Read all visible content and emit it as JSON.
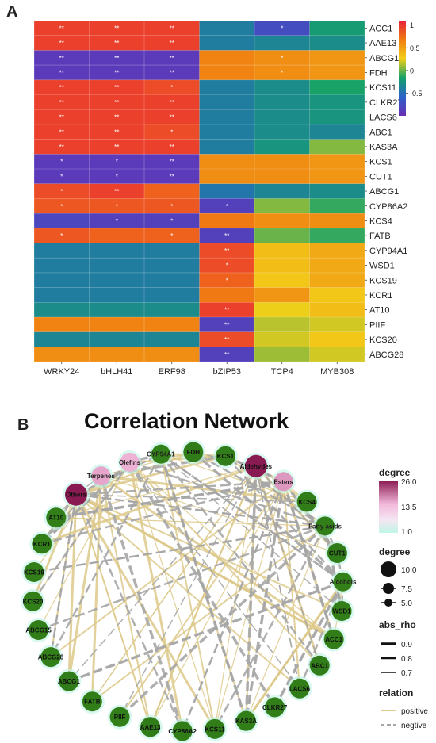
{
  "panels": {
    "a": "A",
    "b": "B"
  },
  "chart_data": [
    {
      "type": "heatmap",
      "columns": [
        "WRKY24",
        "bHLH41",
        "ERF98",
        "bZIP53",
        "TCP4",
        "MYB308"
      ],
      "rows": [
        "ACC1",
        "AAE13",
        "ABCG15",
        "FDH",
        "KCS11",
        "CLKR27",
        "LACS6",
        "ABC1",
        "KAS3A",
        "KCS1",
        "CUT1",
        "ABCG1",
        "CYP86A2",
        "KCS4",
        "FATB",
        "CYP94A1",
        "WSD1",
        "KCS19",
        "KCR1",
        "AT10",
        "PIIF",
        "KCS20",
        "ABCG28"
      ],
      "values": [
        [
          0.95,
          0.95,
          0.95,
          -0.4,
          -0.75,
          -0.2
        ],
        [
          0.95,
          0.95,
          0.95,
          -0.4,
          -0.35,
          -0.3
        ],
        [
          -0.9,
          -0.9,
          -0.9,
          0.65,
          0.6,
          0.55
        ],
        [
          -0.9,
          -0.9,
          -0.9,
          0.65,
          0.6,
          0.55
        ],
        [
          0.95,
          0.95,
          0.9,
          -0.4,
          -0.3,
          -0.15
        ],
        [
          0.95,
          0.95,
          0.95,
          -0.4,
          -0.3,
          -0.25
        ],
        [
          0.95,
          0.95,
          0.95,
          -0.4,
          -0.3,
          -0.25
        ],
        [
          0.95,
          0.95,
          0.9,
          -0.4,
          -0.3,
          -0.35
        ],
        [
          0.95,
          0.95,
          0.95,
          -0.4,
          -0.25,
          0.05
        ],
        [
          -0.9,
          -0.9,
          -0.9,
          0.6,
          0.6,
          0.55
        ],
        [
          -0.9,
          -0.9,
          -0.9,
          0.6,
          0.6,
          0.55
        ],
        [
          0.9,
          0.95,
          0.8,
          -0.45,
          -0.35,
          -0.3
        ],
        [
          0.85,
          0.85,
          0.85,
          -0.85,
          0.05,
          -0.1
        ],
        [
          -0.8,
          -0.85,
          -0.85,
          0.7,
          0.6,
          0.6
        ],
        [
          0.85,
          0.8,
          0.8,
          -0.85,
          0.0,
          -0.1
        ],
        [
          -0.4,
          -0.4,
          -0.4,
          0.9,
          0.35,
          0.45
        ],
        [
          -0.4,
          -0.4,
          -0.4,
          0.9,
          0.35,
          0.45
        ],
        [
          -0.4,
          -0.4,
          -0.4,
          0.8,
          0.3,
          0.45
        ],
        [
          -0.4,
          -0.4,
          -0.4,
          0.7,
          0.55,
          0.3
        ],
        [
          -0.3,
          -0.3,
          -0.3,
          0.95,
          0.25,
          0.35
        ],
        [
          0.65,
          0.65,
          0.65,
          -0.85,
          0.15,
          0.2
        ],
        [
          -0.35,
          -0.35,
          -0.35,
          0.9,
          0.2,
          0.3
        ],
        [
          0.6,
          0.6,
          0.6,
          -0.85,
          0.1,
          0.2
        ]
      ],
      "significance": [
        [
          "**",
          "**",
          "**",
          "",
          "*",
          ""
        ],
        [
          "**",
          "**",
          "**",
          "",
          "",
          ""
        ],
        [
          "**",
          "**",
          "**",
          "",
          "*",
          ""
        ],
        [
          "**",
          "**",
          "**",
          "",
          "*",
          ""
        ],
        [
          "**",
          "**",
          "*",
          "",
          "",
          ""
        ],
        [
          "**",
          "**",
          "**",
          "",
          "",
          ""
        ],
        [
          "**",
          "**",
          "**",
          "",
          "",
          ""
        ],
        [
          "**",
          "**",
          "*",
          "",
          "",
          ""
        ],
        [
          "**",
          "**",
          "**",
          "",
          "",
          ""
        ],
        [
          "*",
          "*",
          "**",
          "",
          "",
          ""
        ],
        [
          "*",
          "*",
          "**",
          "",
          "",
          ""
        ],
        [
          "*",
          "**",
          "",
          "",
          "",
          ""
        ],
        [
          "*",
          "*",
          "*",
          "*",
          "",
          ""
        ],
        [
          "",
          "*",
          "*",
          "",
          "",
          ""
        ],
        [
          "*",
          "",
          "*",
          "**",
          "",
          ""
        ],
        [
          "",
          "",
          "",
          "**",
          "",
          ""
        ],
        [
          "",
          "",
          "",
          "*",
          "",
          ""
        ],
        [
          "",
          "",
          "",
          "*",
          "",
          ""
        ],
        [
          "",
          "",
          "",
          "",
          "",
          ""
        ],
        [
          "",
          "",
          "",
          "**",
          "",
          ""
        ],
        [
          "",
          "",
          "",
          "**",
          "",
          ""
        ],
        [
          "",
          "",
          "",
          "**",
          "",
          ""
        ],
        [
          "",
          "",
          "",
          "**",
          "",
          ""
        ]
      ],
      "legend": {
        "ticks": [
          1,
          0.5,
          0,
          -0.5
        ],
        "tick_labels": [
          "1",
          "0.5",
          "0",
          "-0.5"
        ],
        "range": [
          -1,
          1.1
        ]
      },
      "colors": [
        "#6a2fb5",
        "#2a62c8",
        "#14a16a",
        "#f2cf17",
        "#f07d12",
        "#e8203a"
      ]
    },
    {
      "type": "network",
      "title": "Correlation Network",
      "nodes": [
        {
          "name": "CYP94A1",
          "degree": 8,
          "group": "compound"
        },
        {
          "name": "FDH",
          "degree": 3,
          "group": "gene"
        },
        {
          "name": "KCS1",
          "degree": 4,
          "group": "gene"
        },
        {
          "name": "Aldehydes",
          "degree": 26,
          "group": "compound"
        },
        {
          "name": "Esters",
          "degree": 16,
          "group": "compound"
        },
        {
          "name": "KCS4",
          "degree": 5,
          "group": "gene"
        },
        {
          "name": "Fatty acids",
          "degree": 6,
          "group": "compound"
        },
        {
          "name": "CUT1",
          "degree": 3,
          "group": "gene"
        },
        {
          "name": "Alcohols",
          "degree": 7,
          "group": "compound"
        },
        {
          "name": "WSD1",
          "degree": 6,
          "group": "gene"
        },
        {
          "name": "ACC1",
          "degree": 5,
          "group": "gene"
        },
        {
          "name": "ABC1",
          "degree": 4,
          "group": "gene"
        },
        {
          "name": "LACS6",
          "degree": 5,
          "group": "gene"
        },
        {
          "name": "CLKR27",
          "degree": 6,
          "group": "gene"
        },
        {
          "name": "KAS3A",
          "degree": 5,
          "group": "gene"
        },
        {
          "name": "KCS11",
          "degree": 4,
          "group": "gene"
        },
        {
          "name": "CYP86A2",
          "degree": 5,
          "group": "gene"
        },
        {
          "name": "AAE13",
          "degree": 3,
          "group": "gene"
        },
        {
          "name": "PIIF",
          "degree": 6,
          "group": "gene"
        },
        {
          "name": "FATB",
          "degree": 5,
          "group": "gene"
        },
        {
          "name": "ABCG1",
          "degree": 3,
          "group": "gene"
        },
        {
          "name": "ABCG28",
          "degree": 6,
          "group": "gene"
        },
        {
          "name": "ABCG15",
          "degree": 5,
          "group": "gene"
        },
        {
          "name": "KCS20",
          "degree": 6,
          "group": "gene"
        },
        {
          "name": "KCS19",
          "degree": 6,
          "group": "gene"
        },
        {
          "name": "KCR1",
          "degree": 5,
          "group": "gene"
        },
        {
          "name": "AT10",
          "degree": 6,
          "group": "gene"
        },
        {
          "name": "Others",
          "degree": 26,
          "group": "compound"
        },
        {
          "name": "Terpenes",
          "degree": 15,
          "group": "compound"
        },
        {
          "name": "Olefins",
          "degree": 14,
          "group": "compound"
        }
      ],
      "legend": {
        "degree_color": {
          "title": "degree",
          "labels": [
            "26.0",
            "13.5",
            "1.0"
          ],
          "range": [
            1,
            26
          ]
        },
        "degree_size": {
          "title": "degree",
          "labels": [
            "10.0",
            "7.5",
            "5.0"
          ]
        },
        "abs_rho": {
          "title": "abs_rho",
          "labels": [
            "0.9",
            "0.8",
            "0.7"
          ]
        },
        "relation": {
          "title": "relation",
          "labels": [
            "positive",
            "negtive"
          ]
        }
      },
      "colors": {
        "positive": "#ddc98a",
        "negative": "#a6a6a6",
        "high": "#8a1a52",
        "mid": "#f2b8da",
        "low": "#2f7a18",
        "node_low": "#3c8f1c",
        "glow": "#bff5e6"
      }
    }
  ]
}
